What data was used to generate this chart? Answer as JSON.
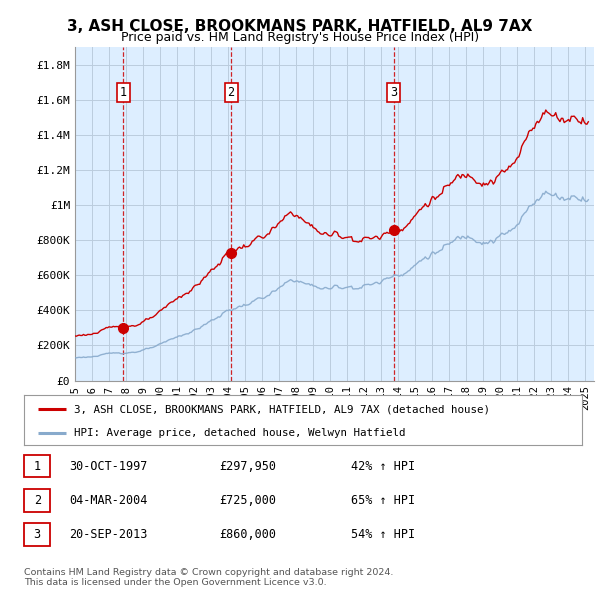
{
  "title": "3, ASH CLOSE, BROOKMANS PARK, HATFIELD, AL9 7AX",
  "subtitle": "Price paid vs. HM Land Registry's House Price Index (HPI)",
  "ylabel_ticks": [
    "£0",
    "£200K",
    "£400K",
    "£600K",
    "£800K",
    "£1M",
    "£1.2M",
    "£1.4M",
    "£1.6M",
    "£1.8M"
  ],
  "ytick_values": [
    0,
    200000,
    400000,
    600000,
    800000,
    1000000,
    1200000,
    1400000,
    1600000,
    1800000
  ],
  "ylim": [
    0,
    1900000
  ],
  "xlim_start": 1995.0,
  "xlim_end": 2025.5,
  "sale_dates": [
    1997.83,
    2004.17,
    2013.72
  ],
  "sale_prices": [
    297950,
    725000,
    860000
  ],
  "sale_labels": [
    "1",
    "2",
    "3"
  ],
  "red_line_color": "#cc0000",
  "blue_line_color": "#88aacc",
  "sale_marker_color": "#cc0000",
  "dashed_line_color": "#cc0000",
  "plot_bg_color": "#ddeeff",
  "legend_entries": [
    "3, ASH CLOSE, BROOKMANS PARK, HATFIELD, AL9 7AX (detached house)",
    "HPI: Average price, detached house, Welwyn Hatfield"
  ],
  "table_rows": [
    [
      "1",
      "30-OCT-1997",
      "£297,950",
      "42% ↑ HPI"
    ],
    [
      "2",
      "04-MAR-2004",
      "£725,000",
      "65% ↑ HPI"
    ],
    [
      "3",
      "20-SEP-2013",
      "£860,000",
      "54% ↑ HPI"
    ]
  ],
  "footer_text": "Contains HM Land Registry data © Crown copyright and database right 2024.\nThis data is licensed under the Open Government Licence v3.0.",
  "background_color": "#ffffff",
  "grid_color": "#bbccdd",
  "xtick_years": [
    1995,
    1996,
    1997,
    1998,
    1999,
    2000,
    2001,
    2002,
    2003,
    2004,
    2005,
    2006,
    2007,
    2008,
    2009,
    2010,
    2011,
    2012,
    2013,
    2014,
    2015,
    2016,
    2017,
    2018,
    2019,
    2020,
    2021,
    2022,
    2023,
    2024,
    2025
  ]
}
